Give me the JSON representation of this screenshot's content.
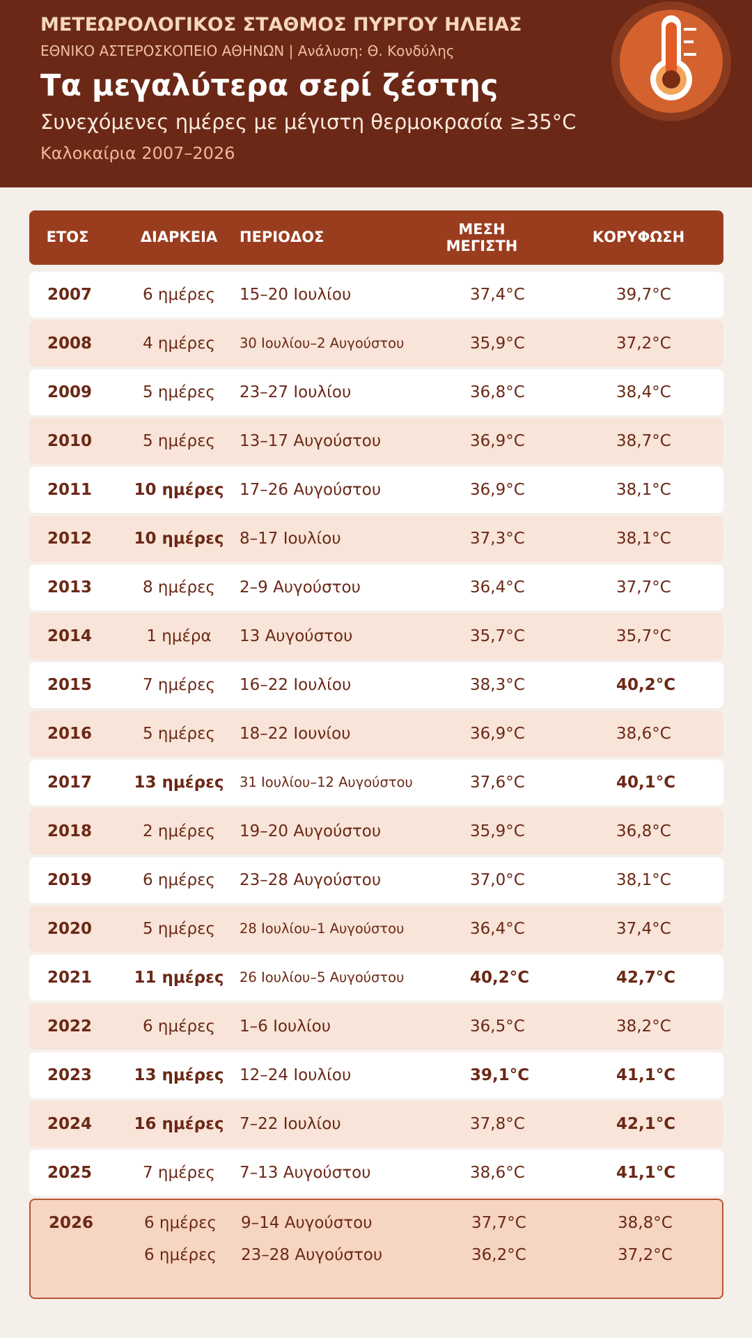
{
  "header": {
    "station": "ΜΕΤΕΩΡΟΛΟΓΙΚΟΣ ΣΤΑΘΜΟΣ ΠΥΡΓΟΥ ΗΛΕΙΑΣ",
    "institute": "ΕΘΝΙΚΟ ΑΣΤΕΡΟΣΚΟΠΕΙΟ ΑΘΗΝΩΝ | Ανάλυση: Θ. Κονδύλης",
    "title": "Τα μεγαλύτερα σερί ζέστης",
    "subtitle": "Συνεχόμενες ημέρες με μέγιστη θερμοκρασία ≥35°C",
    "period": "Καλοκαίρια 2007–2026"
  },
  "table": {
    "columns": [
      "ΕΤΟΣ",
      "ΔΙΑΡΚΕΙΑ",
      "ΠΕΡΙΟΔΟΣ",
      "ΜΕΣΗ ΜΕΓΙΣΤΗ",
      "ΚΟΡΥΦΩΣΗ"
    ],
    "rows": [
      {
        "year": "2007",
        "streaks": [
          {
            "duration": "6 ημέρες",
            "period": "15–20 Ιουλίου",
            "mean": "37,4°C",
            "peak": "39,7°C",
            "bold": []
          }
        ]
      },
      {
        "year": "2008",
        "streaks": [
          {
            "duration": "4 ημέρες",
            "period": "30 Ιουλίου–2 Αυγούστου",
            "mean": "35,9°C",
            "peak": "37,2°C",
            "bold": []
          }
        ]
      },
      {
        "year": "2009",
        "streaks": [
          {
            "duration": "5 ημέρες",
            "period": "23–27 Ιουλίου",
            "mean": "36,8°C",
            "peak": "38,4°C",
            "bold": []
          }
        ]
      },
      {
        "year": "2010",
        "streaks": [
          {
            "duration": "5 ημέρες",
            "period": "13–17 Αυγούστου",
            "mean": "36,9°C",
            "peak": "38,7°C",
            "bold": []
          }
        ]
      },
      {
        "year": "2011",
        "streaks": [
          {
            "duration": "10 ημέρες",
            "period": "17–26 Αυγούστου",
            "mean": "36,9°C",
            "peak": "38,1°C",
            "bold": [
              "duration"
            ]
          }
        ]
      },
      {
        "year": "2012",
        "streaks": [
          {
            "duration": "10 ημέρες",
            "period": "8–17 Ιουλίου",
            "mean": "37,3°C",
            "peak": "38,1°C",
            "bold": [
              "duration"
            ]
          }
        ]
      },
      {
        "year": "2013",
        "streaks": [
          {
            "duration": "8 ημέρες",
            "period": "2–9 Αυγούστου",
            "mean": "36,4°C",
            "peak": "37,7°C",
            "bold": []
          }
        ]
      },
      {
        "year": "2014",
        "streaks": [
          {
            "duration": "1 ημέρα",
            "period": "13 Αυγούστου",
            "mean": "35,7°C",
            "peak": "35,7°C",
            "bold": []
          }
        ]
      },
      {
        "year": "2015",
        "streaks": [
          {
            "duration": "7 ημέρες",
            "period": "16–22 Ιουλίου",
            "mean": "38,3°C",
            "peak": "40,2°C",
            "bold": [
              "peak"
            ]
          }
        ]
      },
      {
        "year": "2016",
        "streaks": [
          {
            "duration": "5 ημέρες",
            "period": "18–22 Ιουνίου",
            "mean": "36,9°C",
            "peak": "38,6°C",
            "bold": []
          }
        ]
      },
      {
        "year": "2017",
        "streaks": [
          {
            "duration": "13 ημέρες",
            "period": "31 Ιουλίου–12 Αυγούστου",
            "mean": "37,6°C",
            "peak": "40,1°C",
            "bold": [
              "duration",
              "peak"
            ]
          }
        ]
      },
      {
        "year": "2018",
        "streaks": [
          {
            "duration": "2 ημέρες",
            "period": "19–20 Αυγούστου",
            "mean": "35,9°C",
            "peak": "36,8°C",
            "bold": []
          }
        ]
      },
      {
        "year": "2019",
        "streaks": [
          {
            "duration": "6 ημέρες",
            "period": "23–28 Αυγούστου",
            "mean": "37,0°C",
            "peak": "38,1°C",
            "bold": []
          }
        ]
      },
      {
        "year": "2020",
        "streaks": [
          {
            "duration": "5 ημέρες",
            "period": "28 Ιουλίου–1 Αυγούστου",
            "mean": "36,4°C",
            "peak": "37,4°C",
            "bold": []
          }
        ]
      },
      {
        "year": "2021",
        "streaks": [
          {
            "duration": "11 ημέρες",
            "period": "26 Ιουλίου–5 Αυγούστου",
            "mean": "40,2°C",
            "peak": "42,7°C",
            "bold": [
              "duration",
              "mean",
              "peak"
            ]
          }
        ]
      },
      {
        "year": "2022",
        "streaks": [
          {
            "duration": "6 ημέρες",
            "period": "1–6 Ιουλίου",
            "mean": "36,5°C",
            "peak": "38,2°C",
            "bold": []
          }
        ]
      },
      {
        "year": "2023",
        "streaks": [
          {
            "duration": "13 ημέρες",
            "period": "12–24 Ιουλίου",
            "mean": "39,1°C",
            "peak": "41,1°C",
            "bold": [
              "duration",
              "mean",
              "peak"
            ]
          }
        ]
      },
      {
        "year": "2024",
        "streaks": [
          {
            "duration": "16 ημέρες",
            "period": "7–22 Ιουλίου",
            "mean": "37,8°C",
            "peak": "42,1°C",
            "bold": [
              "duration",
              "peak"
            ]
          }
        ]
      },
      {
        "year": "2025",
        "streaks": [
          {
            "duration": "7 ημέρες",
            "period": "7–13 Αυγούστου",
            "mean": "38,6°C",
            "peak": "41,1°C",
            "bold": [
              "peak"
            ]
          }
        ]
      },
      {
        "year": "2026",
        "highlight": true,
        "streaks": [
          {
            "duration": "6 ημέρες",
            "period": "9–14 Αυγούστου",
            "mean": "37,7°C",
            "peak": "38,8°C",
            "bold": []
          },
          {
            "duration": "6 ημέρες",
            "period": "23–28 Αυγούστου",
            "mean": "36,2°C",
            "peak": "37,2°C",
            "bold": []
          }
        ]
      }
    ]
  }
}
